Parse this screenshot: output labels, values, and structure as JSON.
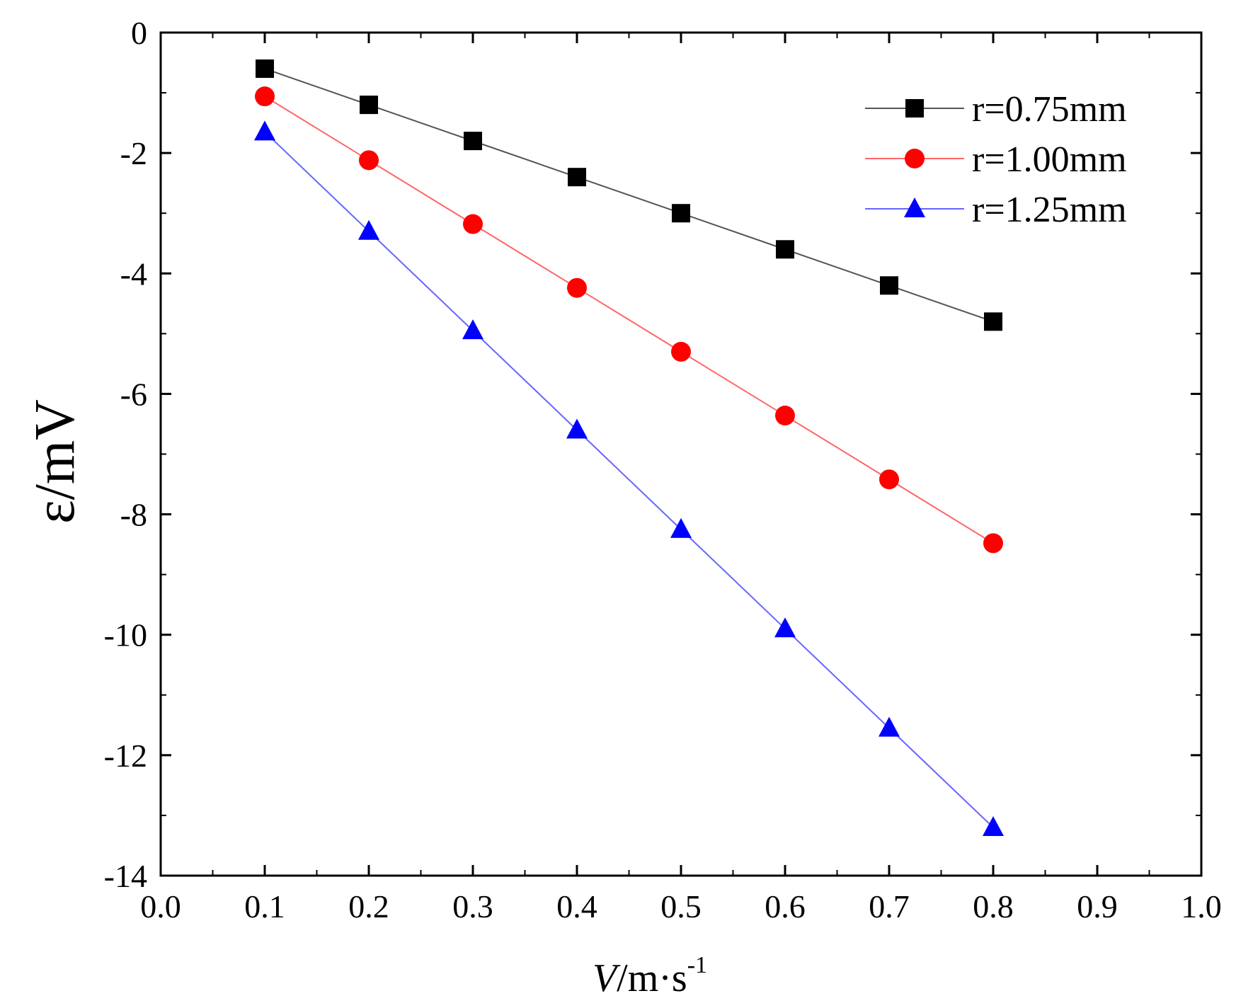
{
  "chart_data": {
    "type": "line",
    "title": "",
    "xlabel": {
      "italic": "V",
      "rest": "/m·s",
      "superscript": "-1"
    },
    "ylabel": "ε/mV",
    "xlim": [
      0.0,
      1.0
    ],
    "ylim": [
      -14,
      0
    ],
    "x_ticks": [
      0.0,
      0.1,
      0.2,
      0.3,
      0.4,
      0.5,
      0.6,
      0.7,
      0.8,
      0.9,
      1.0
    ],
    "x_tick_labels": [
      "0.0",
      "0.1",
      "0.2",
      "0.3",
      "0.4",
      "0.5",
      "0.6",
      "0.7",
      "0.8",
      "0.9",
      "1.0"
    ],
    "y_ticks": [
      0,
      -2,
      -4,
      -6,
      -8,
      -10,
      -12,
      -14
    ],
    "y_tick_labels": [
      "0",
      "-2",
      "-4",
      "-6",
      "-8",
      "-10",
      "-12",
      "-14"
    ],
    "grid": false,
    "legend_position": "top-right",
    "x": [
      0.1,
      0.2,
      0.3,
      0.4,
      0.5,
      0.6,
      0.7,
      0.8
    ],
    "series": [
      {
        "name": "r=0.75mm",
        "marker": "square",
        "color": "#000000",
        "line_color": "#555555",
        "values": [
          -0.6,
          -1.2,
          -1.8,
          -2.4,
          -3.0,
          -3.6,
          -4.2,
          -4.8
        ]
      },
      {
        "name": "r=1.00mm",
        "marker": "circle",
        "color": "#ff0000",
        "line_color": "#ff6666",
        "values": [
          -1.06,
          -2.12,
          -3.18,
          -4.24,
          -5.3,
          -6.36,
          -7.42,
          -8.48
        ]
      },
      {
        "name": "r=1.25mm",
        "marker": "triangle",
        "color": "#0000ff",
        "line_color": "#6666ff",
        "values": [
          -1.65,
          -3.3,
          -4.95,
          -6.6,
          -8.25,
          -9.9,
          -11.55,
          -13.2
        ]
      }
    ]
  }
}
